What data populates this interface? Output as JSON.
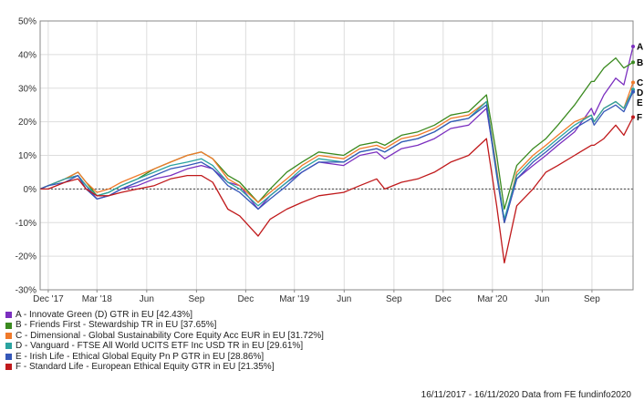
{
  "chart_data": {
    "type": "line",
    "title": "",
    "xlabel": "",
    "ylabel": "",
    "ylim": [
      -30,
      50
    ],
    "y_ticks": [
      -30,
      -20,
      -10,
      0,
      10,
      20,
      30,
      40,
      50
    ],
    "y_tick_labels": [
      "-30%",
      "-20%",
      "-10%",
      "0%",
      "10%",
      "20%",
      "30%",
      "40%",
      "50%"
    ],
    "x_range": [
      "2017-11-16",
      "2020-11-16"
    ],
    "x_ticks": [
      {
        "date": "2017-12-01",
        "label": "Dec '17"
      },
      {
        "date": "2018-03-01",
        "label": "Mar '18"
      },
      {
        "date": "2018-06-01",
        "label": "Jun"
      },
      {
        "date": "2018-09-01",
        "label": "Sep"
      },
      {
        "date": "2018-12-01",
        "label": "Dec"
      },
      {
        "date": "2019-03-01",
        "label": "Mar '19"
      },
      {
        "date": "2019-06-01",
        "label": "Jun"
      },
      {
        "date": "2019-09-01",
        "label": "Sep"
      },
      {
        "date": "2019-12-01",
        "label": "Dec"
      },
      {
        "date": "2020-03-01",
        "label": "Mar '20"
      },
      {
        "date": "2020-06-01",
        "label": "Jun"
      },
      {
        "date": "2020-09-01",
        "label": "Sep"
      }
    ],
    "grid": true,
    "legend_position": "bottom-left",
    "x": [
      "2017-11-16",
      "2017-12-01",
      "2018-01-01",
      "2018-01-25",
      "2018-02-09",
      "2018-03-01",
      "2018-03-23",
      "2018-04-15",
      "2018-05-15",
      "2018-06-15",
      "2018-07-15",
      "2018-08-15",
      "2018-09-10",
      "2018-10-01",
      "2018-10-29",
      "2018-11-20",
      "2018-12-24",
      "2019-01-15",
      "2019-02-15",
      "2019-03-15",
      "2019-04-15",
      "2019-05-31",
      "2019-06-30",
      "2019-07-31",
      "2019-08-15",
      "2019-09-15",
      "2019-10-15",
      "2019-11-15",
      "2019-12-15",
      "2020-01-17",
      "2020-02-19",
      "2020-03-09",
      "2020-03-23",
      "2020-04-15",
      "2020-05-15",
      "2020-06-08",
      "2020-06-30",
      "2020-07-31",
      "2020-08-31",
      "2020-09-05",
      "2020-09-23",
      "2020-10-15",
      "2020-10-30",
      "2020-11-16"
    ],
    "series": [
      {
        "name": "A - Innovate Green (D) GTR in EU [42.43%]",
        "end_label": "A",
        "color": "#7b2fbf",
        "values": [
          0,
          1,
          3,
          4,
          1,
          -3,
          -2,
          0,
          1,
          3,
          4,
          6,
          7,
          6,
          2,
          1,
          -6,
          -2,
          2,
          5,
          8,
          7,
          10,
          11,
          9,
          12,
          13,
          15,
          18,
          19,
          24,
          5,
          -10,
          3,
          7,
          10,
          13,
          17,
          24,
          22,
          28,
          33,
          31,
          42.4
        ]
      },
      {
        "name": "B - Friends First - Stewardship TR in EU [37.65%]",
        "end_label": "B",
        "color": "#3a8a1f",
        "values": [
          0,
          1,
          3,
          5,
          2,
          -2,
          -1,
          1,
          3,
          6,
          8,
          10,
          11,
          9,
          4,
          2,
          -4,
          0,
          5,
          8,
          11,
          10,
          13,
          14,
          13,
          16,
          17,
          19,
          22,
          23,
          28,
          10,
          -6,
          7,
          12,
          15,
          19,
          25,
          32,
          32,
          36,
          39,
          36,
          37.7
        ]
      },
      {
        "name": "C - Dimensional - Global Sustainability Core Equity Acc EUR in EU [31.72%]",
        "end_label": "C",
        "color": "#f07a2a",
        "values": [
          0,
          1,
          3,
          5,
          2,
          -1,
          0,
          2,
          4,
          6,
          8,
          10,
          11,
          9,
          3,
          1,
          -4,
          -1,
          3,
          7,
          10,
          9,
          12,
          13,
          12,
          15,
          16,
          18,
          21,
          22,
          26,
          6,
          -10,
          5,
          10,
          13,
          16,
          20,
          22,
          20,
          24,
          26,
          24,
          31.7
        ]
      },
      {
        "name": "D - Vanguard - FTSE All World UCITS ETF Inc USD TR in EU [29.61%]",
        "end_label": "D",
        "color": "#2aa3a0",
        "values": [
          0,
          1,
          3,
          4,
          1,
          -2,
          -1,
          1,
          3,
          5,
          7,
          8,
          9,
          7,
          2,
          0,
          -5,
          -2,
          2,
          6,
          9,
          8,
          11,
          12,
          11,
          14,
          15,
          17,
          20,
          21,
          26,
          5,
          -9,
          4,
          9,
          12,
          15,
          19,
          22,
          20,
          24,
          26,
          24,
          29.6
        ]
      },
      {
        "name": "E - Irish Life - Ethical Global Equity Pn P GTR in EU [28.86%]",
        "end_label": "E",
        "color": "#3557b8",
        "values": [
          0,
          1,
          2,
          4,
          0,
          -3,
          -2,
          0,
          2,
          4,
          6,
          7,
          8,
          6,
          1,
          -1,
          -6,
          -3,
          1,
          5,
          8,
          8,
          11,
          12,
          11,
          14,
          15,
          17,
          20,
          21,
          25,
          4,
          -10,
          3,
          8,
          11,
          14,
          18,
          21,
          19,
          23,
          25,
          23,
          28.9
        ]
      },
      {
        "name": "F - Standard Life - European Ethical Equity GTR in EU [21.35%]",
        "end_label": "F",
        "color": "#c0191b",
        "values": [
          0,
          0,
          2,
          3,
          0,
          -2,
          -2,
          -1,
          0,
          1,
          3,
          4,
          4,
          2,
          -6,
          -8,
          -14,
          -9,
          -6,
          -4,
          -2,
          -1,
          1,
          3,
          0,
          2,
          3,
          5,
          8,
          10,
          15,
          -5,
          -22,
          -5,
          0,
          5,
          7,
          10,
          13,
          13,
          15,
          19,
          16,
          21.4
        ]
      }
    ]
  },
  "footer_text": "16/11/2017 - 16/11/2020 Data from FE fundinfo2020"
}
